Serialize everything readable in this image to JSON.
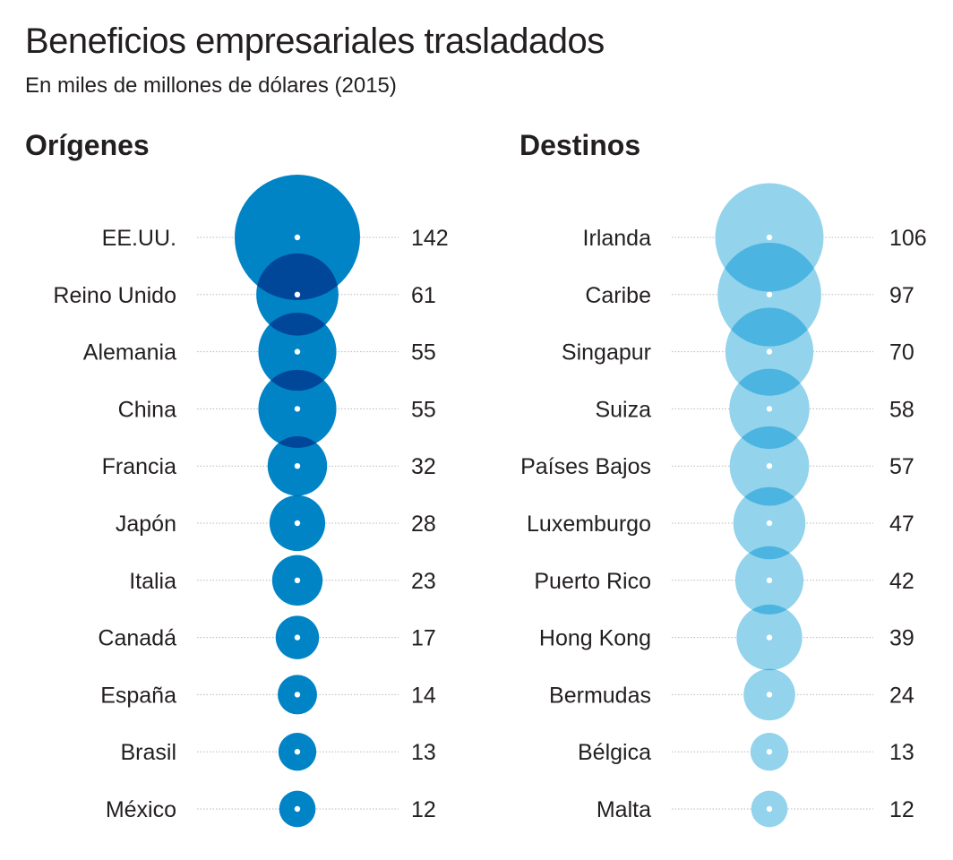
{
  "title": "Beneficios empresariales trasladados",
  "subtitle": "En miles de millones de dólares (2015)",
  "chart_data": [
    {
      "type": "bubble",
      "title": "Orígenes",
      "color": "#0084c6",
      "overlap_color": "#00479a",
      "categories": [
        "EE.UU.",
        "Reino Unido",
        "Alemania",
        "China",
        "Francia",
        "Japón",
        "Italia",
        "Canadá",
        "España",
        "Brasil",
        "México"
      ],
      "values": [
        142,
        61,
        55,
        55,
        32,
        28,
        23,
        17,
        14,
        13,
        12
      ]
    },
    {
      "type": "bubble",
      "title": "Destinos",
      "color": "#93d3ec",
      "overlap_color": "#4cb4e0",
      "categories": [
        "Irlanda",
        "Caribe",
        "Singapur",
        "Suiza",
        "Países Bajos",
        "Luxemburgo",
        "Puerto Rico",
        "Hong Kong",
        "Bermudas",
        "Bélgica",
        "Malta"
      ],
      "values": [
        106,
        97,
        70,
        58,
        57,
        47,
        42,
        39,
        24,
        13,
        12
      ]
    }
  ]
}
